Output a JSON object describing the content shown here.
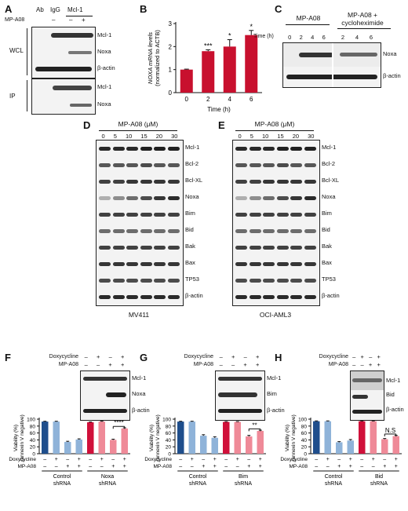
{
  "panels": {
    "A": {
      "label": "A",
      "ab_label": "Ab",
      "igg_label": "IgG",
      "mcl1_header": "Mcl-1",
      "mpa08_label": "MP-A08",
      "lanes": [
        "–",
        "–",
        "+"
      ],
      "wcl_label": "WCL",
      "ip_label": "IP",
      "wcl_rows": [
        "Mcl-1",
        "Noxa",
        "β-actin"
      ],
      "ip_rows": [
        "Mcl-1",
        "Noxa"
      ]
    },
    "B": {
      "label": "B",
      "ylabel_line1": "NOXA mRNA levels",
      "ylabel_line2": "(normalized to ACTB)",
      "xlabel": "Time (h)"
    },
    "C": {
      "label": "C",
      "header_left": "MP-A08",
      "header_right_1": "MP-A08 +",
      "header_right_2": "cycloheximide",
      "time_label": "Time (h)",
      "lanes_left": [
        "0",
        "2",
        "4",
        "6"
      ],
      "lanes_right": [
        "2",
        "4",
        "6"
      ],
      "rows": [
        "Noxa",
        "β-actin"
      ]
    },
    "D": {
      "label": "D",
      "header": "MP-A08 (μM)",
      "lanes": [
        "0",
        "5",
        "10",
        "15",
        "20",
        "30"
      ],
      "rows": [
        "Mcl-1",
        "Bcl-2",
        "Bcl-XL",
        "Noxa",
        "Bim",
        "Bid",
        "Bak",
        "Bax",
        "TP53",
        "β-actin"
      ],
      "cell_line": "MV411"
    },
    "E": {
      "label": "E",
      "header": "MP-A08 (μM)",
      "lanes": [
        "0",
        "5",
        "10",
        "15",
        "20",
        "30"
      ],
      "rows": [
        "Mcl-1",
        "Bcl-2",
        "Bcl-XL",
        "Noxa",
        "Bim",
        "Bid",
        "Bak",
        "Bax",
        "TP53",
        "β-actin"
      ],
      "cell_line": "OCI-AML3"
    },
    "F": {
      "label": "F",
      "dox_label": "Doxycycline",
      "mp_label": "MP-A08",
      "dox_signs": [
        "–",
        "+",
        "–",
        "+"
      ],
      "mp_signs": [
        "–",
        "–",
        "+",
        "+"
      ],
      "rows": [
        "Mcl-1",
        "Noxa",
        "β-actin"
      ],
      "ylabel_line1": "Viability (%)",
      "ylabel_line2": "(annexin V negative)",
      "bar_dox": [
        "–",
        "+",
        "–",
        "+",
        "–",
        "+",
        "–",
        "+"
      ],
      "bar_mp": [
        "–",
        "–",
        "+",
        "+",
        "–",
        "–",
        "+",
        "+"
      ],
      "group1_1": "Control",
      "group1_2": "shRNA",
      "group2_1": "Noxa",
      "group2_2": "shRNA",
      "sig": "****"
    },
    "G": {
      "label": "G",
      "dox_label": "Doxycycline",
      "mp_label": "MP-A08",
      "dox_signs": [
        "–",
        "+",
        "–",
        "+"
      ],
      "mp_signs": [
        "–",
        "–",
        "+",
        "+"
      ],
      "rows": [
        "Mcl-1",
        "Bim",
        "β-actin"
      ],
      "ylabel_line1": "Viability (%)",
      "ylabel_line2": "(annexin V negative)",
      "bar_dox": [
        "–",
        "+",
        "–",
        "+",
        "–",
        "+",
        "–",
        "+"
      ],
      "bar_mp": [
        "–",
        "–",
        "+",
        "+",
        "–",
        "–",
        "+",
        "+"
      ],
      "group1_1": "Control",
      "group1_2": "shRNA",
      "group2_1": "Bim",
      "group2_2": "shRNA",
      "sig": "**"
    },
    "H": {
      "label": "H",
      "dox_label": "Doxycycline",
      "mp_label": "MP-A08",
      "dox_signs": [
        "–",
        "+",
        "–",
        "+"
      ],
      "mp_signs": [
        "–",
        "–",
        "+",
        "+"
      ],
      "rows": [
        "Mcl-1",
        "Bid",
        "β-actin"
      ],
      "ylabel_line1": "Viability (%)",
      "ylabel_line2": "(annexin V negative)",
      "bar_dox": [
        "–",
        "+",
        "–",
        "+",
        "–",
        "+",
        "–",
        "+"
      ],
      "bar_mp": [
        "–",
        "–",
        "+",
        "+",
        "–",
        "–",
        "+",
        "+"
      ],
      "group1_1": "Control",
      "group1_2": "shRNA",
      "group2_1": "Bid",
      "group2_2": "shRNA",
      "sig": "N.S"
    }
  },
  "colors": {
    "red": "#c8102e",
    "dark_blue": "#1f4e8c",
    "light_blue": "#8fb3d9",
    "crimson": "#d0103a",
    "pink": "#ef8a98"
  },
  "chart_data": [
    {
      "type": "bar",
      "panel": "B",
      "categories": [
        "0",
        "2",
        "4",
        "6"
      ],
      "values": [
        1.0,
        1.8,
        2.0,
        2.5
      ],
      "errors": [
        0.02,
        0.06,
        0.3,
        0.2
      ],
      "significance": [
        "",
        "***",
        "*",
        "*"
      ],
      "xlabel": "Time (h)",
      "ylabel": "NOXA mRNA levels (normalized to ACTB)",
      "ylim": [
        0,
        3
      ],
      "yticks": [
        0,
        1,
        2,
        3
      ]
    },
    {
      "type": "bar",
      "panel": "F",
      "values": [
        93,
        93,
        34,
        41,
        91,
        93,
        40,
        73
      ],
      "errors": [
        1,
        1,
        2,
        2,
        1,
        1,
        2,
        2
      ],
      "bar_colors": [
        "#1f4e8c",
        "#8fb3d9",
        "#8fb3d9",
        "#8fb3d9",
        "#d0103a",
        "#ef8a98",
        "#ef8a98",
        "#ef8a98"
      ],
      "ylabel": "Viability (%) (annexin V negative)",
      "ylim": [
        0,
        100
      ],
      "yticks": [
        0,
        20,
        40,
        60,
        80,
        100
      ]
    },
    {
      "type": "bar",
      "panel": "G",
      "values": [
        93,
        93,
        52,
        46,
        92,
        92,
        50,
        66
      ],
      "errors": [
        1,
        1,
        3,
        3,
        1,
        1,
        3,
        2
      ],
      "bar_colors": [
        "#1f4e8c",
        "#8fb3d9",
        "#8fb3d9",
        "#8fb3d9",
        "#d0103a",
        "#ef8a98",
        "#ef8a98",
        "#ef8a98"
      ],
      "ylabel": "Viability (%) (annexin V negative)",
      "ylim": [
        0,
        100
      ],
      "yticks": [
        0,
        20,
        40,
        60,
        80,
        100
      ]
    },
    {
      "type": "bar",
      "panel": "H",
      "values": [
        94,
        94,
        33,
        38,
        94,
        94,
        42,
        51
      ],
      "errors": [
        1,
        1,
        2,
        3,
        1,
        1,
        2,
        2
      ],
      "bar_colors": [
        "#1f4e8c",
        "#8fb3d9",
        "#8fb3d9",
        "#8fb3d9",
        "#d0103a",
        "#ef8a98",
        "#ef8a98",
        "#ef8a98"
      ],
      "ylabel": "Viability (%) (annexin V negative)",
      "ylim": [
        0,
        100
      ],
      "yticks": [
        0,
        20,
        40,
        60,
        80,
        100
      ]
    }
  ]
}
